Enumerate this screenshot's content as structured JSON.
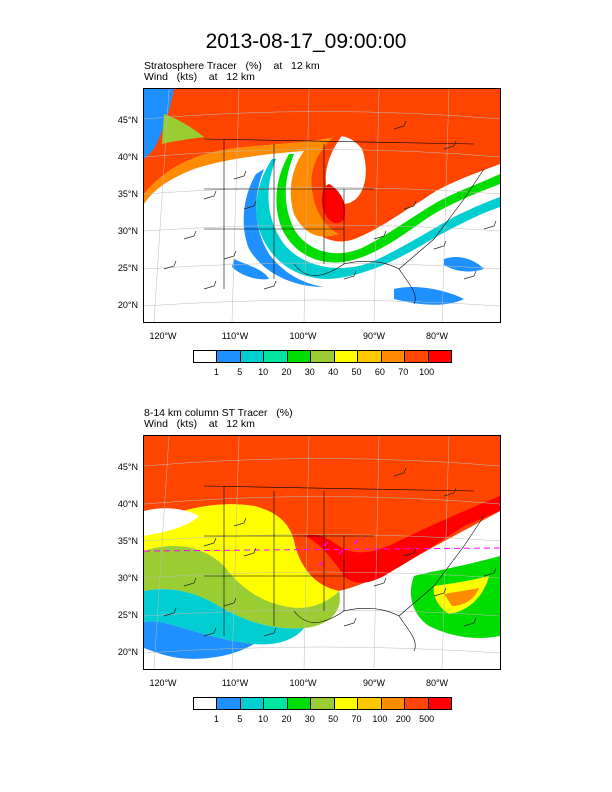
{
  "title": "2013-08-17_09:00:00",
  "panels": [
    {
      "field_label": "Stratosphere Tracer   (%)    at   12 km",
      "wind_label": "Wind   (kts)    at   12 km",
      "lat_labels": [
        "45°N",
        "40°N",
        "35°N",
        "30°N",
        "25°N",
        "20°N"
      ],
      "lon_labels": [
        "120°W",
        "110°W",
        "100°W",
        "90°W",
        "80°W"
      ],
      "colorbar": {
        "colors": [
          "#ffffff",
          "#1e90ff",
          "#00ced1",
          "#00e5a0",
          "#00dd00",
          "#9acd32",
          "#ffff00",
          "#ffc800",
          "#ff8c00",
          "#ff4500",
          "#ff0000"
        ],
        "labels": [
          "1",
          "5",
          "10",
          "20",
          "30",
          "40",
          "50",
          "60",
          "70",
          "100"
        ]
      }
    },
    {
      "field_label": "8-14 km column ST Tracer   (%)",
      "wind_label": "Wind   (kts)    at   12 km",
      "lat_labels": [
        "45°N",
        "40°N",
        "35°N",
        "30°N",
        "25°N",
        "20°N"
      ],
      "lon_labels": [
        "120°W",
        "110°W",
        "100°W",
        "90°W",
        "80°W"
      ],
      "colorbar": {
        "colors": [
          "#ffffff",
          "#1e90ff",
          "#00ced1",
          "#00e5a0",
          "#00dd00",
          "#9acd32",
          "#ffff00",
          "#ffc800",
          "#ff8c00",
          "#ff4500",
          "#ff0000"
        ],
        "labels": [
          "1",
          "5",
          "10",
          "20",
          "30",
          "50",
          "70",
          "100",
          "200",
          "500"
        ]
      }
    }
  ]
}
